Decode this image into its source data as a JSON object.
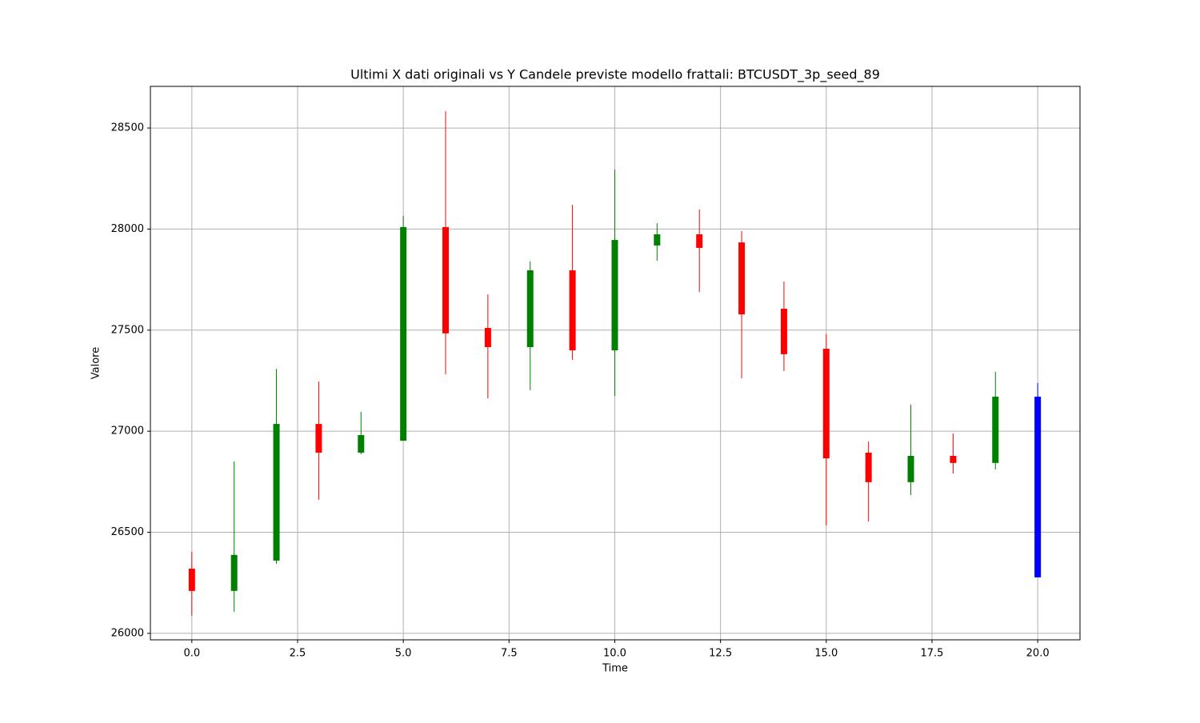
{
  "chart_data": {
    "type": "candlestick",
    "title": "Ultimi X dati originali vs Y Candele previste modello frattali: BTCUSDT_3p_seed_89",
    "xlabel": "Time",
    "ylabel": "Valore",
    "x": [
      0,
      1,
      2,
      3,
      4,
      5,
      6,
      7,
      8,
      9,
      10,
      11,
      12,
      13,
      14,
      15,
      16,
      17,
      18,
      19,
      20
    ],
    "open": [
      26320,
      26210,
      26360,
      27036,
      26894,
      26953,
      28010,
      27511,
      27416,
      27796,
      27400,
      27919,
      27974,
      27934,
      27606,
      27408,
      26894,
      26748,
      26878,
      26843,
      27171
    ],
    "high": [
      26403,
      26851,
      27309,
      27246,
      27096,
      28065,
      28583,
      27677,
      27840,
      28120,
      28294,
      28029,
      28097,
      27990,
      27741,
      27480,
      26949,
      27131,
      26989,
      27294,
      27238
    ],
    "low": [
      26087,
      26107,
      26344,
      26661,
      26886,
      26953,
      27282,
      27163,
      27203,
      27353,
      27175,
      27843,
      27689,
      27262,
      27298,
      26534,
      26554,
      26684,
      26791,
      26811,
      26277
    ],
    "close": [
      26210,
      26388,
      27036,
      26894,
      26981,
      28010,
      27484,
      27416,
      27796,
      27400,
      27946,
      27974,
      27907,
      27578,
      27381,
      26866,
      26748,
      26878,
      26843,
      27171,
      26277
    ],
    "colors": [
      "red",
      "green",
      "green",
      "red",
      "green",
      "green",
      "red",
      "red",
      "green",
      "red",
      "green",
      "green",
      "red",
      "red",
      "red",
      "red",
      "red",
      "green",
      "red",
      "green",
      "blue"
    ],
    "xlim": [
      -0.98,
      21.0
    ],
    "ylim": [
      25968,
      28706
    ],
    "xticks": [
      {
        "value": 0,
        "label": "0.0"
      },
      2.5,
      {
        "value": 5,
        "label": "5.0"
      },
      7.5,
      {
        "value": 10,
        "label": "10.0"
      },
      12.5,
      {
        "value": 15,
        "label": "15.0"
      },
      17.5,
      {
        "value": 20,
        "label": "20.0"
      }
    ],
    "yticks": [
      26000,
      26500,
      27000,
      27500,
      28000,
      28500
    ],
    "grid": true
  }
}
